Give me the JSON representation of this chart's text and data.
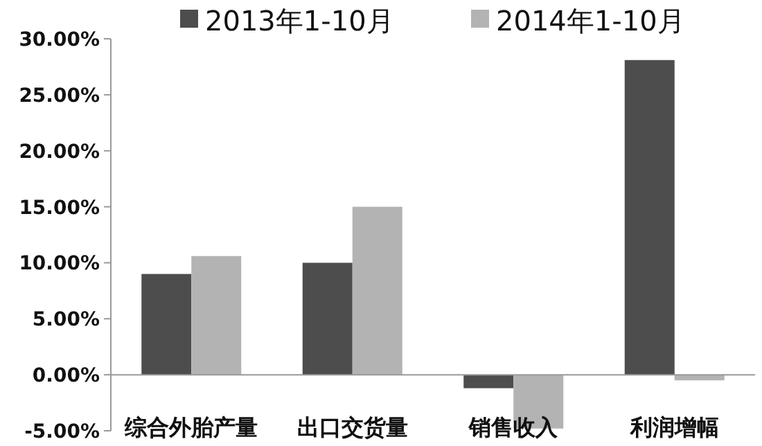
{
  "chart_data": {
    "type": "bar",
    "categories": [
      "综合外胎产量",
      "出口交货量",
      "销售收入",
      "利润增幅"
    ],
    "series": [
      {
        "name": "2013年1-10月",
        "color": "#4d4d4d",
        "values": [
          9.0,
          10.0,
          -1.2,
          28.1
        ]
      },
      {
        "name": "2014年1-10月",
        "color": "#b3b3b3",
        "values": [
          10.6,
          15.0,
          -4.8,
          -0.5
        ]
      }
    ],
    "ylim": [
      -5,
      30
    ],
    "yticks": [
      {
        "value": -5,
        "label": "-5.00%"
      },
      {
        "value": 0,
        "label": "0.00%"
      },
      {
        "value": 5,
        "label": "5.00%"
      },
      {
        "value": 10,
        "label": "10.00%"
      },
      {
        "value": 15,
        "label": "15.00%"
      },
      {
        "value": 20,
        "label": "20.00%"
      },
      {
        "value": 25,
        "label": "25.00%"
      },
      {
        "value": 30,
        "label": "30.00%"
      }
    ],
    "legend": "top"
  }
}
